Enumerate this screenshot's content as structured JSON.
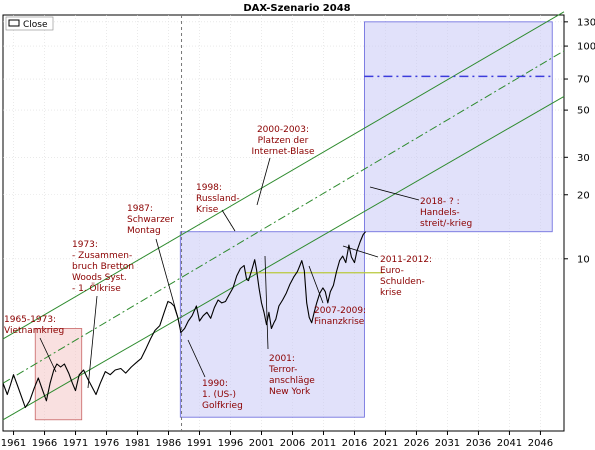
{
  "chart_data": {
    "type": "line",
    "title": "DAX-Szenario 2048",
    "legend": {
      "label": "Close",
      "placement": "top-left"
    },
    "yscale": "log",
    "grid": true,
    "xlim": [
      1959.3,
      2049.8
    ],
    "ylim": [
      1.55,
      140
    ],
    "x_ticks": [
      1961,
      1966,
      1971,
      1976,
      1981,
      1986,
      1991,
      1996,
      2001,
      2006,
      2011,
      2016,
      2021,
      2026,
      2031,
      2036,
      2041,
      2046
    ],
    "y_ticks": [
      10,
      20,
      30,
      50,
      70,
      100,
      130
    ],
    "markers": {
      "vertical_dashed_year": 1988.1,
      "horizontal_dashdot_level": 72
    },
    "channel": {
      "x": [
        1959.3,
        2049.8
      ],
      "upper": [
        4.2,
        145
      ],
      "middle": [
        2.6,
        95
      ],
      "lower": [
        1.75,
        58
      ]
    },
    "shaded_regions": [
      {
        "x": [
          1964.5,
          1972.0
        ],
        "y": [
          1.75,
          4.7
        ],
        "color": "#f4c6c6"
      },
      {
        "x": [
          1987.9,
          2017.6
        ],
        "y": [
          1.8,
          13.4
        ],
        "color": "#c8c8f5"
      },
      {
        "x": [
          2017.6,
          2047.9
        ],
        "y": [
          13.4,
          130
        ],
        "color": "#c8c8f5"
      }
    ],
    "yellow_line": {
      "x": [
        1998.5,
        2020.7
      ],
      "y": 8.6
    },
    "series": [
      {
        "name": "Close",
        "x": [
          1959.3,
          1960.0,
          1960.5,
          1961.0,
          1961.6,
          1962.4,
          1962.9,
          1963.6,
          1964.3,
          1965.0,
          1965.7,
          1966.3,
          1966.9,
          1967.5,
          1968.0,
          1968.6,
          1969.2,
          1969.9,
          1970.5,
          1971.0,
          1971.6,
          1972.3,
          1972.9,
          1973.5,
          1974.3,
          1975.0,
          1975.8,
          1976.6,
          1977.4,
          1978.3,
          1979.1,
          1980.0,
          1980.8,
          1981.6,
          1982.4,
          1983.1,
          1983.8,
          1984.6,
          1985.3,
          1985.9,
          1986.4,
          1986.9,
          1987.5,
          1988.0,
          1988.6,
          1989.2,
          1989.8,
          1990.5,
          1991.0,
          1991.6,
          1992.2,
          1992.8,
          1993.4,
          1994.0,
          1994.6,
          1995.2,
          1995.8,
          1996.4,
          1997.0,
          1997.6,
          1998.2,
          1998.6,
          1998.9,
          1999.4,
          1999.9,
          2000.2,
          2000.6,
          2001.0,
          2001.4,
          2001.8,
          2002.2,
          2002.6,
          2003.0,
          2003.3,
          2003.8,
          2004.4,
          2005.0,
          2005.6,
          2006.2,
          2006.8,
          2007.2,
          2007.5,
          2007.9,
          2008.3,
          2008.7,
          2009.1,
          2009.5,
          2009.9,
          2010.4,
          2010.9,
          2011.3,
          2011.7,
          2012.1,
          2012.6,
          2013.1,
          2013.6,
          2014.1,
          2014.6,
          2015.1,
          2015.5,
          2016.0,
          2016.4,
          2016.9,
          2017.4,
          2017.8
        ],
        "values": [
          2.6,
          2.3,
          2.55,
          2.85,
          2.55,
          2.2,
          2.0,
          2.15,
          2.45,
          2.75,
          2.4,
          2.15,
          2.6,
          3.0,
          3.2,
          3.1,
          3.2,
          2.9,
          2.6,
          2.4,
          2.85,
          3.0,
          2.75,
          2.55,
          2.3,
          2.6,
          2.95,
          2.85,
          3.0,
          3.05,
          2.9,
          3.1,
          3.25,
          3.4,
          3.8,
          4.2,
          4.6,
          4.85,
          5.6,
          6.3,
          6.2,
          6.0,
          5.3,
          4.5,
          4.7,
          5.1,
          5.4,
          6.0,
          5.1,
          5.4,
          5.6,
          5.25,
          5.9,
          6.4,
          6.2,
          6.3,
          6.8,
          7.3,
          8.3,
          9.0,
          9.3,
          8.0,
          7.9,
          8.8,
          9.9,
          8.9,
          7.3,
          6.2,
          5.6,
          4.9,
          5.6,
          4.7,
          5.0,
          5.2,
          6.0,
          6.4,
          6.9,
          7.6,
          8.2,
          8.7,
          9.3,
          9.8,
          8.8,
          6.2,
          5.3,
          5.0,
          5.6,
          6.2,
          6.9,
          7.3,
          7.0,
          6.2,
          7.0,
          7.5,
          8.7,
          9.8,
          10.3,
          9.6,
          11.6,
          10.2,
          9.6,
          10.9,
          12.0,
          13.0,
          13.4
        ]
      }
    ],
    "annotations": [
      {
        "lines": [
          "1965-1973:",
          "Vietnamkrieg"
        ]
      },
      {
        "lines": [
          "1973:",
          "- Zusammen-",
          "bruch Bretton",
          "Woods Syst.",
          "- 1. Ölkrise"
        ]
      },
      {
        "lines": [
          "1987:",
          "Schwarzer",
          "Montag"
        ]
      },
      {
        "lines": [
          "1990:",
          "1. (US-)",
          "Golfkrieg"
        ]
      },
      {
        "lines": [
          "1998:",
          "Russland-",
          "Krise"
        ]
      },
      {
        "lines": [
          "2000-2003:",
          "Platzen der",
          "Internet-Blase"
        ]
      },
      {
        "lines": [
          "2001:",
          "Terror-",
          "anschläge",
          "New York"
        ]
      },
      {
        "lines": [
          "2007-2009:",
          "Finanzkrise"
        ]
      },
      {
        "lines": [
          "2011-2012:",
          "Euro-",
          "Schulden-",
          "krise"
        ]
      },
      {
        "lines": [
          "2018- ? :",
          "Handels-",
          "streit/-krieg"
        ]
      }
    ]
  }
}
